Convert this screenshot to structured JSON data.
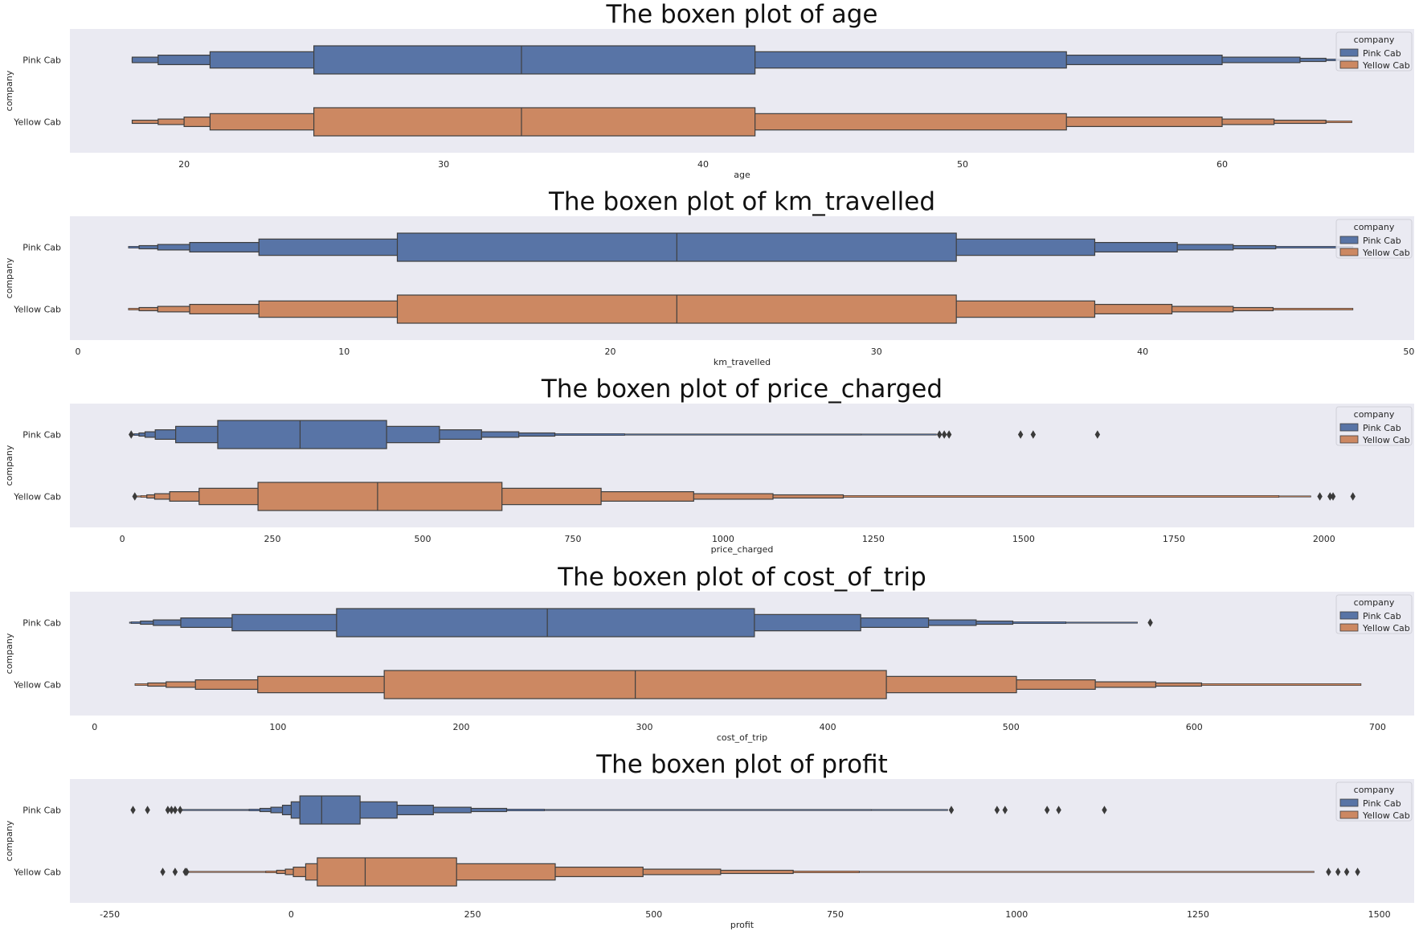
{
  "colors": {
    "pink": "#5874a6",
    "yellow": "#cc8862",
    "bg": "#eaeaf2",
    "edge": "#3f3f3f"
  },
  "chart_data": [
    {
      "type": "boxen",
      "title": "The boxen plot of age",
      "xlabel": "age",
      "ylabel": "company",
      "categories": [
        "Pink Cab",
        "Yellow Cab"
      ],
      "xlim": [
        15.6,
        67.4
      ],
      "xticks": [
        20,
        30,
        40,
        50,
        60
      ],
      "grid": false,
      "legend": {
        "title": "company",
        "position": "top-right",
        "entries": [
          "Pink Cab",
          "Yellow Cab"
        ]
      },
      "series": [
        {
          "name": "Pink Cab",
          "median": 33,
          "levels": [
            [
              25,
              42
            ],
            [
              21,
              54
            ],
            [
              19,
              60
            ],
            [
              18,
              63
            ],
            [
              18,
              64
            ],
            [
              18,
              65
            ]
          ],
          "outliers": []
        },
        {
          "name": "Yellow Cab",
          "median": 33,
          "levels": [
            [
              25,
              42
            ],
            [
              21,
              54
            ],
            [
              20,
              60
            ],
            [
              19,
              62
            ],
            [
              18,
              64
            ],
            [
              18,
              65
            ]
          ],
          "outliers": []
        }
      ]
    },
    {
      "type": "boxen",
      "title": "The boxen plot of km_travelled",
      "xlabel": "km_travelled",
      "ylabel": "company",
      "categories": [
        "Pink Cab",
        "Yellow Cab"
      ],
      "xlim": [
        -0.3,
        50.2
      ],
      "xticks": [
        0,
        10,
        20,
        30,
        40,
        50
      ],
      "grid": false,
      "legend": {
        "title": "company",
        "position": "top-right",
        "entries": [
          "Pink Cab",
          "Yellow Cab"
        ]
      },
      "series": [
        {
          "name": "Pink Cab",
          "median": 22.5,
          "levels": [
            [
              12,
              33
            ],
            [
              6.8,
              38.2
            ],
            [
              4.2,
              41.3
            ],
            [
              3,
              43.4
            ],
            [
              2.3,
              45
            ],
            [
              1.9,
              47.9
            ]
          ],
          "outliers": []
        },
        {
          "name": "Yellow Cab",
          "median": 22.5,
          "levels": [
            [
              12,
              33
            ],
            [
              6.8,
              38.2
            ],
            [
              4.2,
              41.1
            ],
            [
              3,
              43.4
            ],
            [
              2.3,
              44.9
            ],
            [
              1.9,
              47.9
            ]
          ],
          "outliers": []
        }
      ]
    },
    {
      "type": "boxen",
      "title": "The boxen plot of price_charged",
      "xlabel": "price_charged",
      "ylabel": "company",
      "categories": [
        "Pink Cab",
        "Yellow Cab"
      ],
      "xlim": [
        -87,
        2150
      ],
      "xticks": [
        0,
        250,
        500,
        750,
        1000,
        1250,
        1500,
        1750,
        2000
      ],
      "grid": false,
      "legend": {
        "title": "company",
        "position": "top-right",
        "entries": [
          "Pink Cab",
          "Yellow Cab"
        ]
      },
      "series": [
        {
          "name": "Pink Cab",
          "median": 296,
          "levels": [
            [
              159,
              440
            ],
            [
              89,
              528
            ],
            [
              55,
              598
            ],
            [
              38,
              660
            ],
            [
              28,
              720
            ],
            [
              20,
              836
            ],
            [
              16,
              1230
            ],
            [
              15,
              1355
            ]
          ],
          "outliers": [
            15,
            1360,
            1368,
            1376,
            1495,
            1516,
            1623
          ]
        },
        {
          "name": "Yellow Cab",
          "median": 425,
          "levels": [
            [
              226,
              632
            ],
            [
              128,
              797
            ],
            [
              79,
              951
            ],
            [
              54,
              1083
            ],
            [
              41,
              1200
            ],
            [
              31,
              1925
            ],
            [
              22,
              1978
            ]
          ],
          "outliers": [
            21,
            1993,
            2010,
            2015,
            2048
          ]
        }
      ]
    },
    {
      "type": "boxen",
      "title": "The boxen plot of cost_of_trip",
      "xlabel": "cost_of_trip",
      "ylabel": "company",
      "categories": [
        "Pink Cab",
        "Yellow Cab"
      ],
      "xlim": [
        -13.5,
        720
      ],
      "xticks": [
        0,
        100,
        200,
        300,
        400,
        500,
        600,
        700
      ],
      "grid": false,
      "legend": {
        "title": "company",
        "position": "top-right",
        "entries": [
          "Pink Cab",
          "Yellow Cab"
        ]
      },
      "series": [
        {
          "name": "Pink Cab",
          "median": 247,
          "levels": [
            [
              132,
              360
            ],
            [
              75,
              418
            ],
            [
              47,
              455
            ],
            [
              32,
              481
            ],
            [
              25,
              501
            ],
            [
              20,
              530
            ],
            [
              19,
              569
            ]
          ],
          "outliers": [
            576
          ]
        },
        {
          "name": "Yellow Cab",
          "median": 295,
          "levels": [
            [
              158,
              432
            ],
            [
              89,
              503
            ],
            [
              55,
              546
            ],
            [
              39,
              579
            ],
            [
              29,
              604
            ],
            [
              22,
              691
            ]
          ],
          "outliers": []
        }
      ]
    },
    {
      "type": "boxen",
      "title": "The boxen plot of profit",
      "xlabel": "profit",
      "ylabel": "company",
      "categories": [
        "Pink Cab",
        "Yellow Cab"
      ],
      "xlim": [
        -305,
        1548
      ],
      "xticks": [
        -250,
        0,
        250,
        500,
        750,
        1000,
        1250,
        1500
      ],
      "grid": false,
      "legend": {
        "title": "company",
        "position": "top-right",
        "entries": [
          "Pink Cab",
          "Yellow Cab"
        ]
      },
      "series": [
        {
          "name": "Pink Cab",
          "median": 42,
          "levels": [
            [
              12,
              95
            ],
            [
              0,
              146
            ],
            [
              -12,
              196
            ],
            [
              -28,
              248
            ],
            [
              -43,
              297
            ],
            [
              -58,
              349
            ],
            [
              -150,
              800
            ],
            [
              -152,
              905
            ]
          ],
          "outliers": [
            -218,
            -198,
            -170,
            -165,
            -160,
            -153,
            910,
            973,
            984,
            1042,
            1058,
            1121
          ]
        },
        {
          "name": "Yellow Cab",
          "median": 102,
          "levels": [
            [
              36,
              228
            ],
            [
              20,
              364
            ],
            [
              3,
              485
            ],
            [
              -8,
              592
            ],
            [
              -20,
              692
            ],
            [
              -35,
              783
            ],
            [
              -145,
              1410
            ]
          ],
          "outliers": [
            -177,
            -160,
            -146,
            -144,
            1430,
            1443,
            1455,
            1470
          ]
        }
      ]
    }
  ]
}
